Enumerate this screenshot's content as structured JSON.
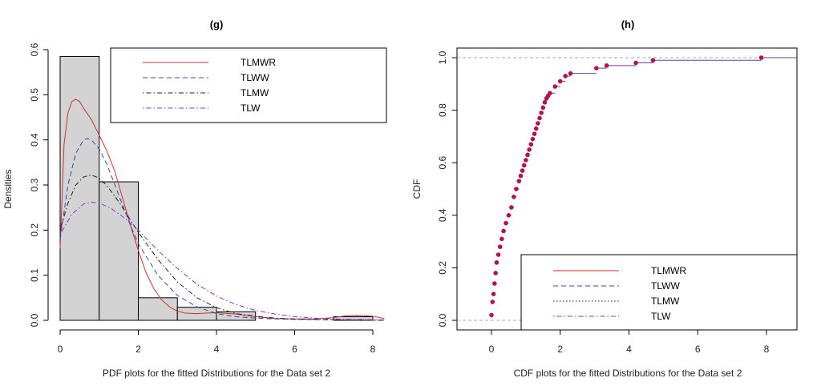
{
  "chart_data": [
    {
      "panel": "g",
      "type": "bar",
      "title": "(g)",
      "xlabel": "PDF plots for the fitted Distributions for the Data set 2",
      "ylabel": "Densities",
      "xlim": [
        0,
        8.3
      ],
      "ylim": [
        0,
        0.6
      ],
      "xticks": [
        "0",
        "2",
        "4",
        "6",
        "8"
      ],
      "yticks": [
        "0.0",
        "0.1",
        "0.2",
        "0.3",
        "0.4",
        "0.5",
        "0.6"
      ],
      "histogram": {
        "bin_edges": [
          0,
          1,
          2,
          3,
          4,
          5,
          6,
          7,
          8
        ],
        "values": [
          0.585,
          0.307,
          0.05,
          0.029,
          0.019,
          0.0,
          0.0,
          0.008
        ],
        "fill": "#d3d3d3"
      },
      "legend": [
        "TLMWR",
        "TLWW",
        "TLMW",
        "TLW"
      ],
      "legend_position": "top-right",
      "series": [
        {
          "name": "TLMWR",
          "color": "#cc3333",
          "style": "solid",
          "x": [
            0,
            0.1,
            0.2,
            0.3,
            0.4,
            0.5,
            0.6,
            0.8,
            1.0,
            1.2,
            1.4,
            1.6,
            1.8,
            2.0,
            2.2,
            2.4,
            2.6,
            2.8,
            3.0,
            3.2,
            3.5,
            4.0,
            4.5,
            5.0,
            5.5,
            6.0,
            6.5,
            7.0,
            7.3,
            7.6,
            8.0,
            8.3
          ],
          "y": [
            0.16,
            0.39,
            0.46,
            0.485,
            0.49,
            0.485,
            0.47,
            0.445,
            0.41,
            0.375,
            0.33,
            0.27,
            0.21,
            0.155,
            0.105,
            0.07,
            0.045,
            0.03,
            0.02,
            0.016,
            0.015,
            0.017,
            0.014,
            0.008,
            0.004,
            0.003,
            0.003,
            0.006,
            0.01,
            0.011,
            0.009,
            0.004
          ]
        },
        {
          "name": "TLWW",
          "color": "#3344aa",
          "style": "dashed",
          "x": [
            0,
            0.2,
            0.4,
            0.6,
            0.7,
            0.8,
            1.0,
            1.2,
            1.4,
            1.6,
            1.8,
            2.0,
            2.5,
            3.0,
            3.5,
            4.0,
            4.5,
            5.0,
            5.5,
            6.0,
            7.0,
            8.3
          ],
          "y": [
            0.18,
            0.3,
            0.37,
            0.4,
            0.403,
            0.4,
            0.38,
            0.345,
            0.3,
            0.255,
            0.21,
            0.17,
            0.1,
            0.055,
            0.03,
            0.015,
            0.008,
            0.005,
            0.003,
            0.002,
            0.001,
            0.0
          ]
        },
        {
          "name": "TLMW",
          "color": "#222222",
          "style": "dotdash",
          "x": [
            0,
            0.2,
            0.4,
            0.6,
            0.8,
            1.0,
            1.2,
            1.4,
            1.6,
            1.8,
            2.0,
            2.5,
            3.0,
            3.5,
            4.0,
            4.5,
            5.0,
            5.5,
            6.0,
            7.0,
            8.3
          ],
          "y": [
            0.2,
            0.26,
            0.3,
            0.318,
            0.322,
            0.315,
            0.298,
            0.275,
            0.25,
            0.222,
            0.195,
            0.135,
            0.085,
            0.05,
            0.028,
            0.015,
            0.009,
            0.005,
            0.003,
            0.001,
            0.0
          ]
        },
        {
          "name": "TLW",
          "color": "#8833cc",
          "style": "dotdash",
          "x": [
            0,
            0.3,
            0.6,
            0.8,
            1.0,
            1.3,
            1.6,
            2.0,
            2.5,
            3.0,
            3.5,
            4.0,
            4.5,
            5.0,
            5.5,
            6.0,
            6.5,
            7.0,
            7.5,
            8.3
          ],
          "y": [
            0.19,
            0.235,
            0.258,
            0.262,
            0.26,
            0.248,
            0.23,
            0.2,
            0.155,
            0.115,
            0.08,
            0.054,
            0.035,
            0.022,
            0.014,
            0.008,
            0.005,
            0.003,
            0.002,
            0.001
          ]
        }
      ]
    },
    {
      "panel": "h",
      "type": "scatter",
      "title": "(h)",
      "xlabel": "CDF plots for the fitted Distributions for the Data set 2",
      "ylabel": "CDF",
      "xlim": [
        -1.0,
        8.9
      ],
      "ylim": [
        0,
        1.0
      ],
      "xticks": [
        "0",
        "2",
        "4",
        "6",
        "8"
      ],
      "yticks": [
        "0.0",
        "0.2",
        "0.4",
        "0.6",
        "0.8",
        "1.0"
      ],
      "point_color": "#b0144a",
      "step_color": "#6a3d9a",
      "reference_lines": [
        0.0,
        1.0
      ],
      "empirical_cdf": {
        "x": [
          0.0,
          0.03,
          0.06,
          0.09,
          0.12,
          0.15,
          0.2,
          0.25,
          0.3,
          0.35,
          0.42,
          0.5,
          0.58,
          0.65,
          0.72,
          0.8,
          0.85,
          0.9,
          0.95,
          1.0,
          1.05,
          1.1,
          1.15,
          1.2,
          1.25,
          1.3,
          1.35,
          1.4,
          1.45,
          1.5,
          1.55,
          1.6,
          1.65,
          1.7,
          1.85,
          2.0,
          2.15,
          2.3,
          3.05,
          3.35,
          4.2,
          4.7,
          7.85
        ],
        "y": [
          0.02,
          0.07,
          0.1,
          0.14,
          0.18,
          0.22,
          0.25,
          0.28,
          0.31,
          0.34,
          0.37,
          0.4,
          0.43,
          0.47,
          0.5,
          0.53,
          0.55,
          0.57,
          0.59,
          0.61,
          0.63,
          0.65,
          0.67,
          0.69,
          0.71,
          0.73,
          0.75,
          0.77,
          0.79,
          0.81,
          0.83,
          0.845,
          0.855,
          0.865,
          0.89,
          0.91,
          0.93,
          0.94,
          0.96,
          0.97,
          0.98,
          0.99,
          1.0
        ]
      },
      "legend": [
        "TLMWR",
        "TLWW",
        "TLMW",
        "TLW"
      ],
      "legend_position": "bottom-right",
      "series": [
        {
          "name": "TLMWR",
          "color": "#cc3333",
          "style": "solid"
        },
        {
          "name": "TLWW",
          "color": "#3344aa",
          "style": "dashed"
        },
        {
          "name": "TLMW",
          "color": "#222222",
          "style": "dotted"
        },
        {
          "name": "TLW",
          "color": "#8833cc",
          "style": "dotdash"
        }
      ]
    }
  ]
}
